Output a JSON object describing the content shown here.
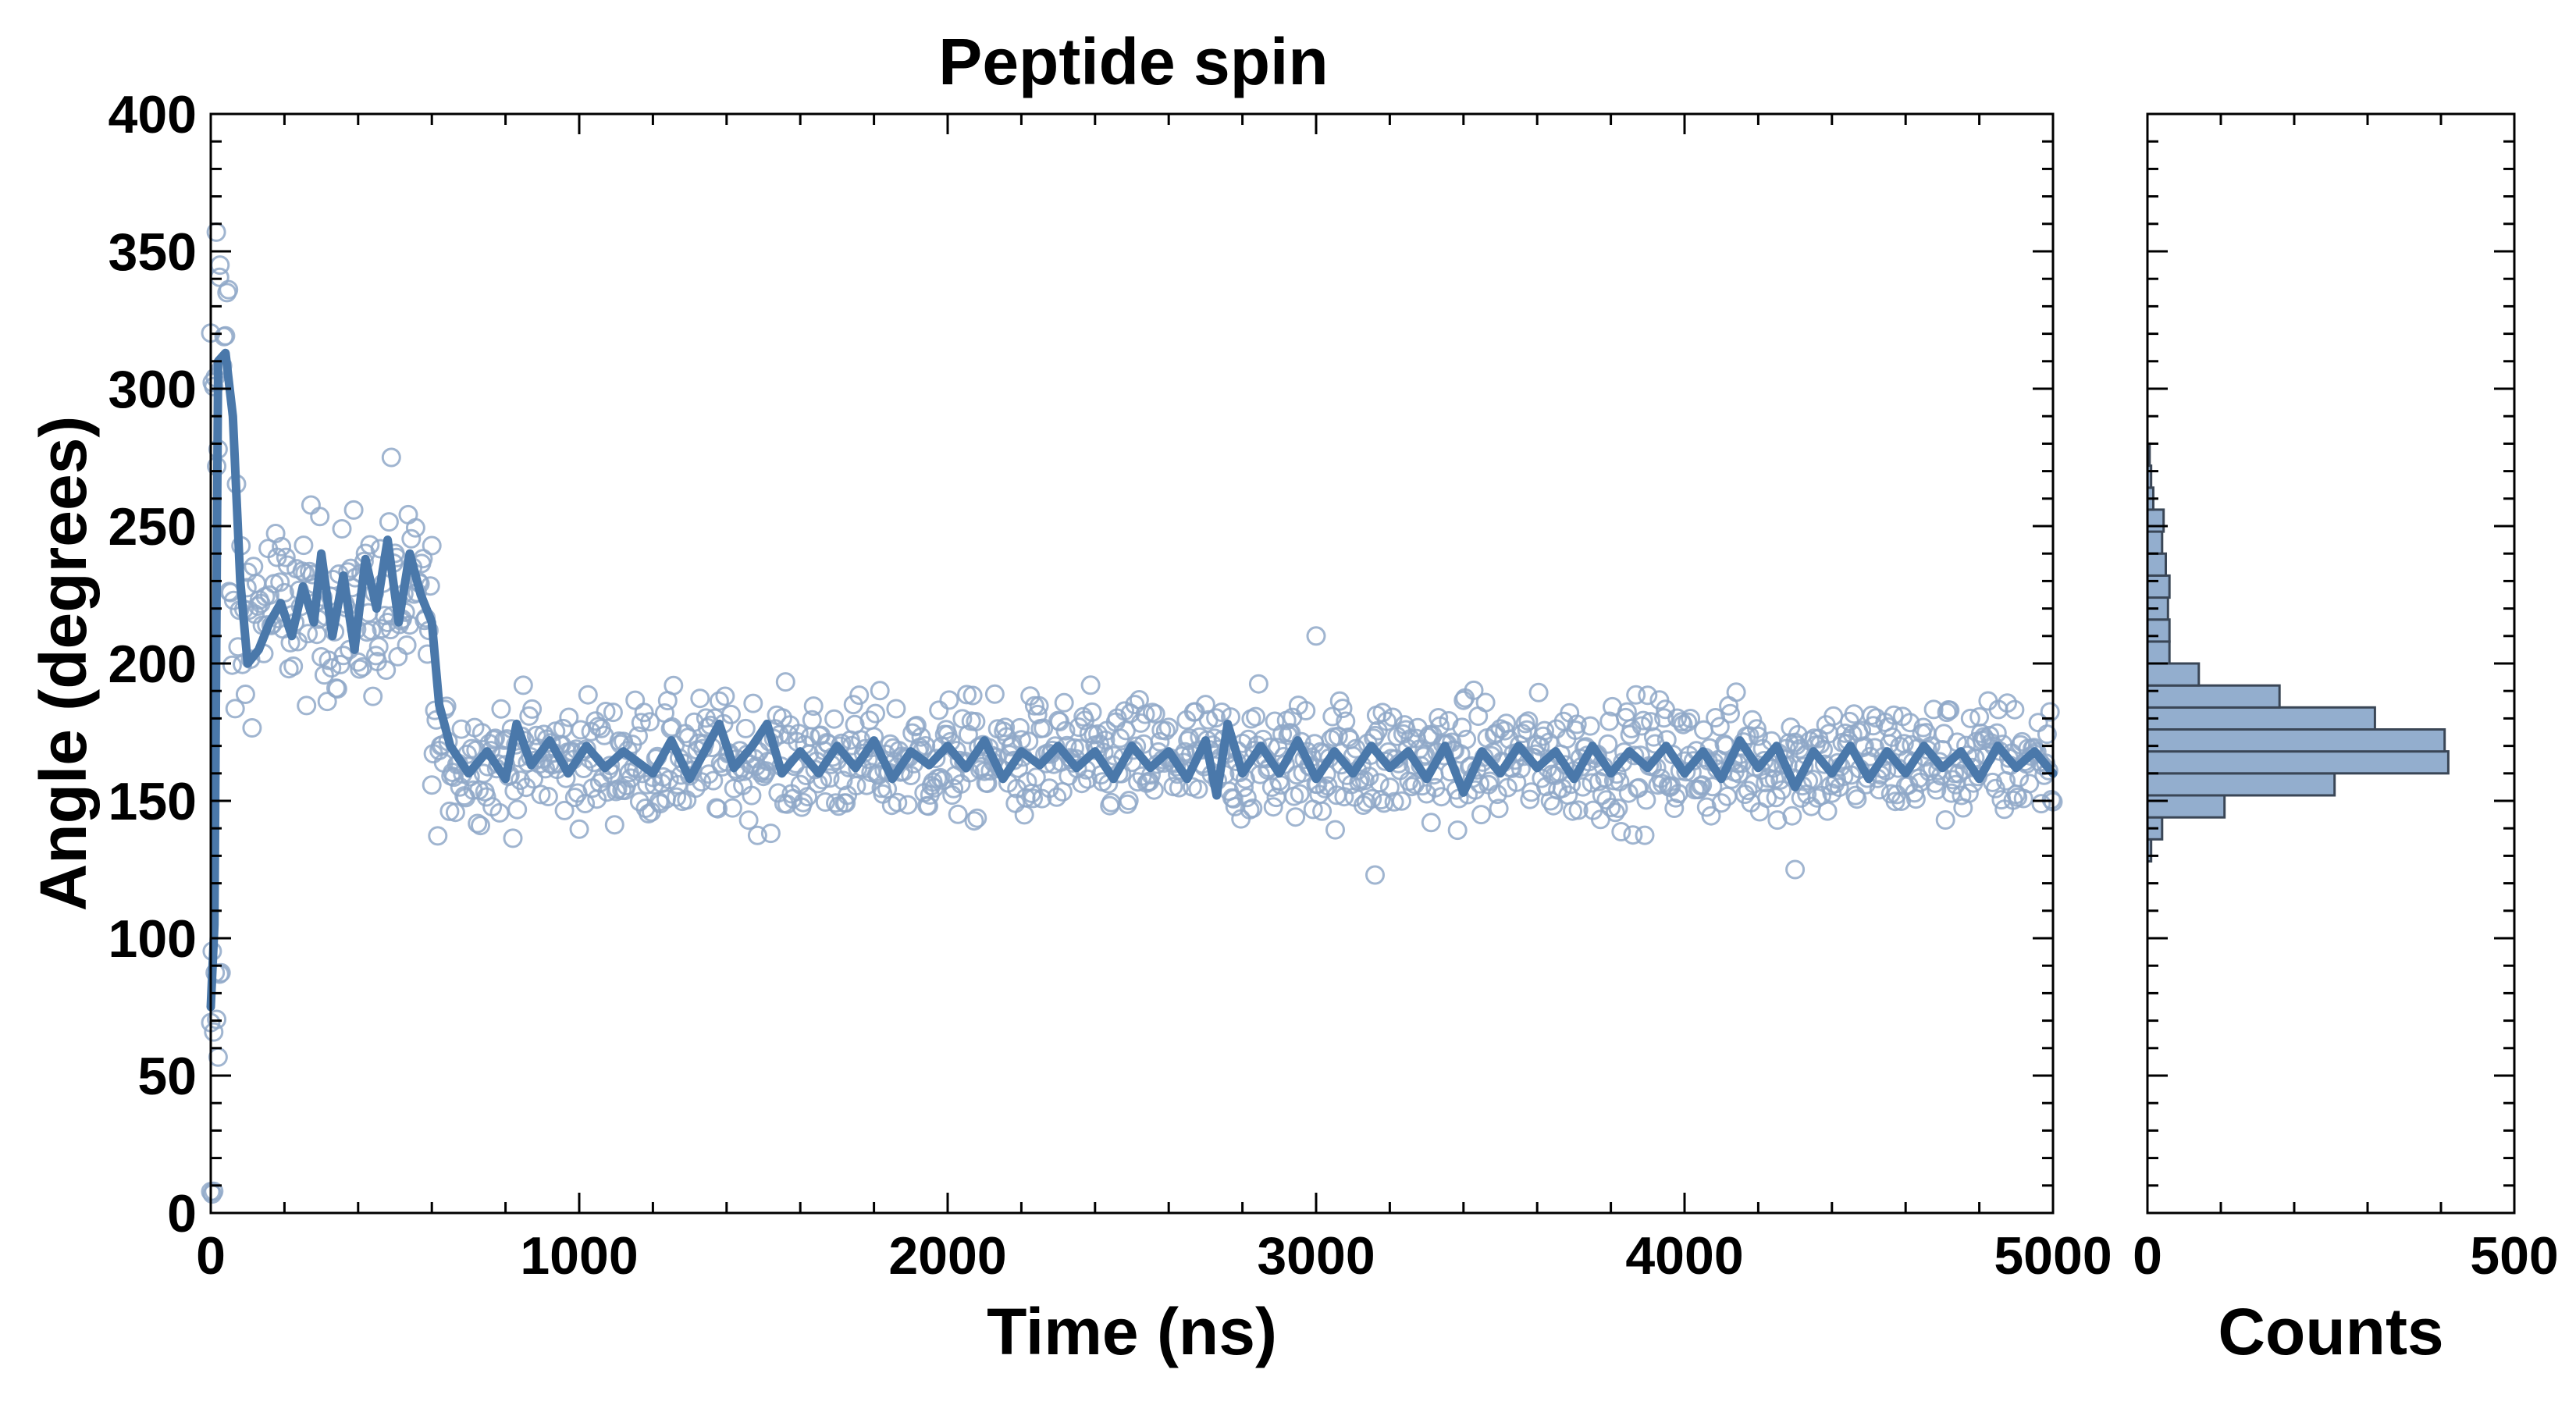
{
  "chart_data": [
    {
      "type": "scatter",
      "title": "Peptide spin",
      "xlabel": "Time (ns)",
      "ylabel": "Angle (degrees)",
      "xlim": [
        0,
        5000
      ],
      "ylim": [
        0,
        400
      ],
      "xticks": [
        0,
        1000,
        2000,
        3000,
        4000,
        5000
      ],
      "yticks": [
        0,
        50,
        100,
        150,
        200,
        250,
        300,
        350,
        400
      ],
      "grid": false,
      "colors": {
        "marker": "#8fa8c8",
        "line": "#4a78aa"
      },
      "series": [
        {
          "kind": "scatter-markers",
          "pattern_segments": [
            {
              "x_from": 0,
              "x_to": 10,
              "angle": 5,
              "spread": 5
            },
            {
              "x_from": 0,
              "x_to": 30,
              "angle": 75,
              "spread": 30
            },
            {
              "x_from": 0,
              "x_to": 50,
              "angle": 312,
              "spread": 45
            },
            {
              "x_from": 50,
              "x_to": 100,
              "angle": 215,
              "spread": 40
            },
            {
              "x_from": 100,
              "x_to": 600,
              "angle": 220,
              "spread": 30
            },
            {
              "x_from": 600,
              "x_to": 5000,
              "angle": 165,
              "spread": 20
            }
          ],
          "outliers": [
            {
              "x": 15,
              "y": 357
            },
            {
              "x": 25,
              "y": 345
            },
            {
              "x": 490,
              "y": 275
            },
            {
              "x": 3000,
              "y": 210
            },
            {
              "x": 3160,
              "y": 123
            },
            {
              "x": 4300,
              "y": 125
            }
          ]
        },
        {
          "kind": "running-average",
          "points": [
            [
              0,
              75
            ],
            [
              10,
              105
            ],
            [
              20,
              310
            ],
            [
              40,
              313
            ],
            [
              60,
              290
            ],
            [
              80,
              230
            ],
            [
              100,
              200
            ],
            [
              130,
              205
            ],
            [
              160,
              215
            ],
            [
              190,
              222
            ],
            [
              220,
              210
            ],
            [
              250,
              228
            ],
            [
              280,
              215
            ],
            [
              300,
              240
            ],
            [
              330,
              210
            ],
            [
              360,
              232
            ],
            [
              390,
              205
            ],
            [
              420,
              238
            ],
            [
              450,
              220
            ],
            [
              480,
              245
            ],
            [
              510,
              215
            ],
            [
              540,
              240
            ],
            [
              570,
              225
            ],
            [
              600,
              215
            ],
            [
              620,
              185
            ],
            [
              650,
              170
            ],
            [
              700,
              160
            ],
            [
              750,
              168
            ],
            [
              800,
              158
            ],
            [
              830,
              178
            ],
            [
              870,
              163
            ],
            [
              920,
              172
            ],
            [
              970,
              160
            ],
            [
              1020,
              170
            ],
            [
              1070,
              162
            ],
            [
              1120,
              168
            ],
            [
              1200,
              160
            ],
            [
              1250,
              172
            ],
            [
              1300,
              158
            ],
            [
              1340,
              168
            ],
            [
              1380,
              178
            ],
            [
              1420,
              162
            ],
            [
              1470,
              170
            ],
            [
              1510,
              178
            ],
            [
              1550,
              160
            ],
            [
              1600,
              168
            ],
            [
              1650,
              160
            ],
            [
              1700,
              170
            ],
            [
              1750,
              162
            ],
            [
              1800,
              172
            ],
            [
              1850,
              158
            ],
            [
              1900,
              168
            ],
            [
              1950,
              163
            ],
            [
              2000,
              170
            ],
            [
              2050,
              162
            ],
            [
              2100,
              172
            ],
            [
              2150,
              158
            ],
            [
              2200,
              168
            ],
            [
              2250,
              163
            ],
            [
              2300,
              170
            ],
            [
              2350,
              162
            ],
            [
              2400,
              168
            ],
            [
              2450,
              158
            ],
            [
              2500,
              170
            ],
            [
              2550,
              162
            ],
            [
              2600,
              168
            ],
            [
              2650,
              158
            ],
            [
              2700,
              172
            ],
            [
              2730,
              152
            ],
            [
              2760,
              178
            ],
            [
              2800,
              160
            ],
            [
              2850,
              170
            ],
            [
              2900,
              160
            ],
            [
              2950,
              172
            ],
            [
              3000,
              158
            ],
            [
              3050,
              168
            ],
            [
              3100,
              160
            ],
            [
              3150,
              170
            ],
            [
              3200,
              162
            ],
            [
              3250,
              168
            ],
            [
              3300,
              158
            ],
            [
              3350,
              170
            ],
            [
              3400,
              153
            ],
            [
              3450,
              168
            ],
            [
              3500,
              160
            ],
            [
              3550,
              170
            ],
            [
              3600,
              162
            ],
            [
              3650,
              168
            ],
            [
              3700,
              158
            ],
            [
              3750,
              170
            ],
            [
              3800,
              160
            ],
            [
              3850,
              168
            ],
            [
              3900,
              162
            ],
            [
              3950,
              170
            ],
            [
              4000,
              160
            ],
            [
              4050,
              168
            ],
            [
              4100,
              158
            ],
            [
              4150,
              172
            ],
            [
              4200,
              162
            ],
            [
              4250,
              170
            ],
            [
              4300,
              155
            ],
            [
              4350,
              168
            ],
            [
              4400,
              160
            ],
            [
              4450,
              170
            ],
            [
              4500,
              158
            ],
            [
              4550,
              168
            ],
            [
              4600,
              160
            ],
            [
              4650,
              170
            ],
            [
              4700,
              162
            ],
            [
              4750,
              168
            ],
            [
              4800,
              158
            ],
            [
              4850,
              170
            ],
            [
              4900,
              162
            ],
            [
              4950,
              168
            ],
            [
              5000,
              160
            ]
          ]
        }
      ]
    },
    {
      "type": "bar",
      "orientation": "horizontal",
      "xlabel": "Counts",
      "xlim": [
        0,
        500
      ],
      "xticks": [
        0,
        500
      ],
      "ylim": [
        0,
        400
      ],
      "bin_width": 8,
      "colors": {
        "fill": "#93aece",
        "edge": "#3a4656"
      },
      "bins": [
        {
          "y0": 128,
          "count": 5
        },
        {
          "y0": 136,
          "count": 20
        },
        {
          "y0": 144,
          "count": 105
        },
        {
          "y0": 152,
          "count": 255
        },
        {
          "y0": 160,
          "count": 410
        },
        {
          "y0": 168,
          "count": 405
        },
        {
          "y0": 176,
          "count": 310
        },
        {
          "y0": 184,
          "count": 180
        },
        {
          "y0": 192,
          "count": 70
        },
        {
          "y0": 200,
          "count": 30
        },
        {
          "y0": 208,
          "count": 30
        },
        {
          "y0": 216,
          "count": 28
        },
        {
          "y0": 224,
          "count": 30
        },
        {
          "y0": 232,
          "count": 25
        },
        {
          "y0": 240,
          "count": 20
        },
        {
          "y0": 248,
          "count": 22
        },
        {
          "y0": 256,
          "count": 8
        },
        {
          "y0": 264,
          "count": 5
        },
        {
          "y0": 272,
          "count": 3
        }
      ]
    }
  ]
}
